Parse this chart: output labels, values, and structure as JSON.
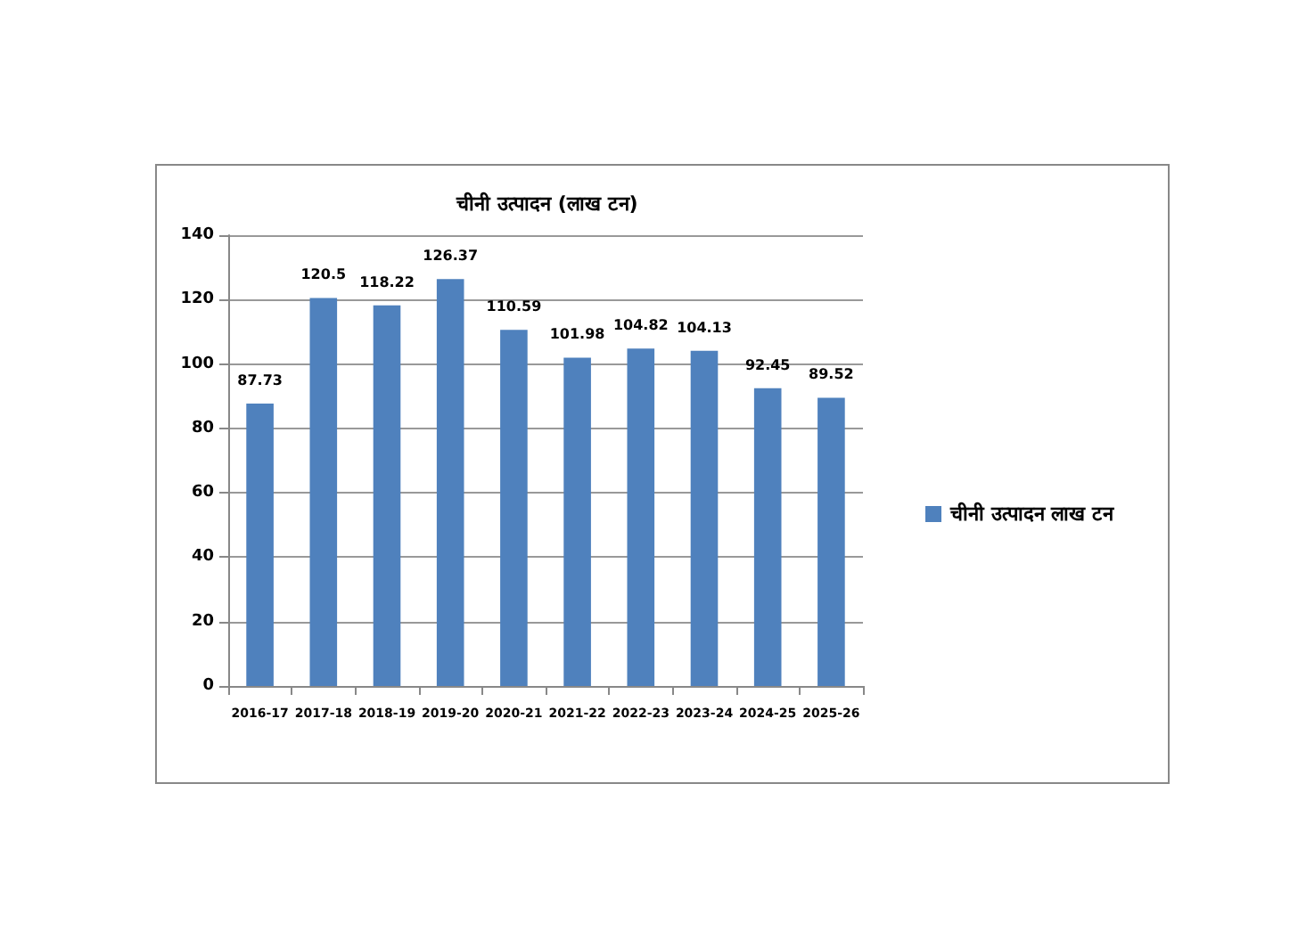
{
  "chart_data": {
    "type": "bar",
    "title": "चीनी उत्पादन (लाख टन)",
    "categories": [
      "2016-17",
      "2017-18",
      "2018-19",
      "2019-20",
      "2020-21",
      "2021-22",
      "2022-23",
      "2023-24",
      "2024-25",
      "2025-26"
    ],
    "series": [
      {
        "name": "चीनी उत्पादन लाख टन",
        "color": "#4f81bd",
        "values": [
          87.73,
          120.5,
          118.22,
          126.37,
          110.59,
          101.98,
          104.82,
          104.13,
          92.45,
          89.52
        ]
      }
    ],
    "ylim": [
      0,
      140
    ],
    "yticks": [
      0,
      20,
      40,
      60,
      80,
      100,
      120,
      140
    ],
    "grid": "y",
    "legend": "right",
    "data_labels": true
  }
}
